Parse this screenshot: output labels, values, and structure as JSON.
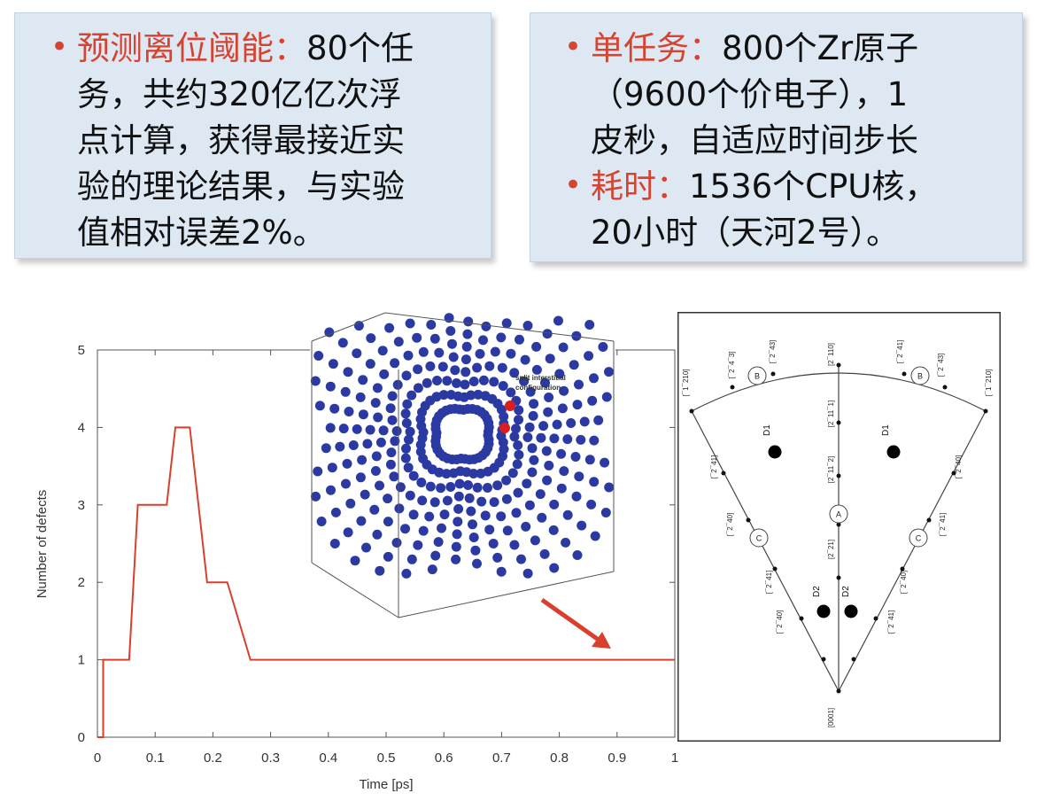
{
  "left_box": {
    "bullet": "•",
    "heading": "预测离位阈能：",
    "lines": [
      "80个任",
      "务，共约320亿亿次浮",
      "点计算，获得最接近实",
      "验的理论结果，与实验",
      "值相对误差2%。"
    ]
  },
  "right_box": {
    "items": [
      {
        "bullet": "•",
        "heading": "单任务：",
        "lines": [
          "800个Zr原子",
          "（9600个价电子），1",
          "皮秒，自适应时间步长"
        ]
      },
      {
        "bullet": "•",
        "heading": "耗时：",
        "lines": [
          "1536个CPU核，",
          "20小时（天河2号）。"
        ]
      }
    ]
  },
  "chart_data": {
    "type": "line",
    "title": "",
    "xlabel": "Time [ps]",
    "ylabel": "Number of defects",
    "xlim": [
      0,
      1
    ],
    "ylim": [
      0,
      5
    ],
    "xticks": [
      "0",
      "0.1",
      "0.2",
      "0.3",
      "0.4",
      "0.5",
      "0.6",
      "0.7",
      "0.8",
      "0.9",
      "1"
    ],
    "yticks": [
      "0",
      "1",
      "2",
      "3",
      "4",
      "5"
    ],
    "line_color": "#d9402c",
    "series": [
      {
        "x": [
          0.0,
          0.01,
          0.01,
          0.055,
          0.07,
          0.12,
          0.135,
          0.16,
          0.19,
          0.2,
          0.225,
          0.265,
          1.0
        ],
        "y": [
          0,
          0,
          1,
          1,
          3,
          3,
          4,
          4,
          2,
          2,
          2,
          1,
          1
        ]
      }
    ]
  },
  "inset": {
    "annotation_lines": [
      "split interstitial",
      "configuration"
    ],
    "atom_color": "#2b3aa3",
    "highlight_color": "#d92020",
    "arrow_color": "#d9402c"
  },
  "sst": {
    "center_labels": [
      "[2¯110]",
      "[2¯11¯1]",
      "[2¯11¯2]",
      "[2¯21]"
    ],
    "left_labels": [
      "[¯1¯210]",
      "[¯2¯4¯3]",
      "[¯2¯43]",
      "[¯2¯41]",
      "[¯2¯40]"
    ],
    "right_labels": [
      "[¯1¯210]",
      "[¯2¯43]",
      "[¯2¯41]",
      "[¯2¯40]",
      "[0001]"
    ],
    "circle_labels": [
      "B",
      "C",
      "A",
      "C",
      "B"
    ],
    "defect_labels": [
      "D1",
      "D1",
      "D2",
      "D2"
    ]
  }
}
